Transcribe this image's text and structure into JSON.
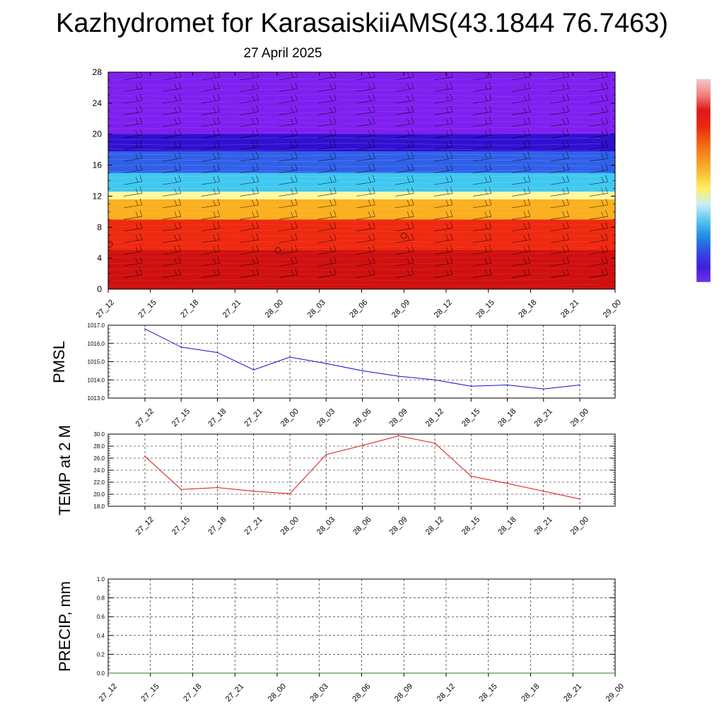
{
  "figure": {
    "title": "Kazhydromet for KarasaiskiiAMS(43.1844 76.7463)",
    "subtitle": "27 April 2025"
  },
  "chart_data": [
    {
      "type": "heatmap",
      "title": "",
      "xlabel": "",
      "ylabel": "",
      "x_ticks": [
        "27_12",
        "27_15",
        "27_18",
        "27_21",
        "28_00",
        "28_03",
        "28_06",
        "28_09",
        "28_12",
        "28_15",
        "28_18",
        "28_21",
        "29_00"
      ],
      "y_ticks": [
        0,
        4,
        8,
        12,
        16,
        20,
        24,
        28
      ],
      "ylim": [
        0,
        28
      ],
      "shading_bands": [
        {
          "from": 0,
          "to": 5,
          "color": "#d01010"
        },
        {
          "from": 5,
          "to": 9,
          "color": "#ee2a10"
        },
        {
          "from": 9,
          "to": 11.6,
          "color": "#fbb020"
        },
        {
          "from": 11.6,
          "to": 12.6,
          "color": "#fff8a0"
        },
        {
          "from": 12.6,
          "to": 15,
          "color": "#40c8f0"
        },
        {
          "from": 15,
          "to": 17.8,
          "color": "#3060e8"
        },
        {
          "from": 17.8,
          "to": 20,
          "color": "#3010d0"
        },
        {
          "from": 20,
          "to": 28,
          "color": "#8020f0"
        }
      ],
      "wind_barbs": true,
      "grid": false,
      "colorbar": {
        "placement": "right",
        "colors": [
          "#f6c8c8",
          "#f08080",
          "#e01818",
          "#e82810",
          "#f06010",
          "#f89020",
          "#f8c030",
          "#fff060",
          "#c8f0f8",
          "#60c8f0",
          "#2090e8",
          "#3050e0",
          "#4020d8",
          "#7030f0"
        ]
      }
    },
    {
      "type": "line",
      "title": "",
      "ylabel": "PMSL",
      "x": [
        "27_12",
        "27_15",
        "27_18",
        "27_21",
        "28_00",
        "28_03",
        "28_06",
        "28_09",
        "28_12",
        "28_15",
        "28_18",
        "28_21",
        "29_00"
      ],
      "series": [
        {
          "values": [
            1016.8,
            1015.8,
            1015.5,
            1014.55,
            1015.25,
            1014.9,
            1014.5,
            1014.2,
            1014.0,
            1013.65,
            1013.72,
            1013.5,
            1013.72
          ],
          "color": "#1010d0"
        }
      ],
      "y_ticks": [
        "1013.0",
        "1014.0",
        "1015.0",
        "1016.0",
        "1017.0"
      ],
      "ylim": [
        1013,
        1017
      ],
      "grid": true
    },
    {
      "type": "line",
      "title": "",
      "ylabel": "TEMP at 2 M",
      "x": [
        "27_12",
        "27_15",
        "27_18",
        "27_21",
        "28_00",
        "28_03",
        "28_06",
        "28_09",
        "28_12",
        "28_15",
        "28_18",
        "28_21",
        "29_00"
      ],
      "series": [
        {
          "values": [
            26.3,
            20.8,
            21.1,
            20.5,
            20.1,
            26.6,
            28.1,
            29.7,
            28.5,
            23.0,
            21.8,
            20.5,
            19.2
          ],
          "color": "#e01010"
        }
      ],
      "y_ticks": [
        "18.0",
        "20.0",
        "22.0",
        "24.0",
        "26.0",
        "28.0",
        "30.0"
      ],
      "ylim": [
        18,
        30
      ],
      "grid": true
    },
    {
      "type": "line",
      "title": "",
      "ylabel": "PRECIP, mm",
      "x": [
        "27_12",
        "27_15",
        "27_18",
        "27_21",
        "28_00",
        "28_03",
        "28_06",
        "28_09",
        "28_12",
        "28_15",
        "28_18",
        "28_21",
        "29_00"
      ],
      "series": [
        {
          "values": [
            0,
            0,
            0,
            0,
            0,
            0,
            0,
            0,
            0,
            0,
            0,
            0,
            0
          ],
          "color": "#208020"
        }
      ],
      "y_ticks": [
        "0.0",
        "0.2",
        "0.4",
        "0.6",
        "0.8",
        "1.0"
      ],
      "ylim": [
        0,
        1
      ],
      "grid": true
    }
  ]
}
